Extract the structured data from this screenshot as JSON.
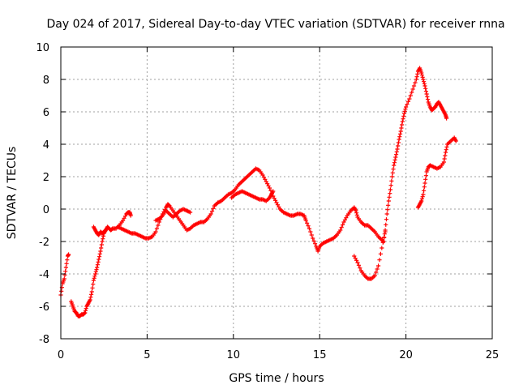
{
  "chart_data": {
    "type": "scatter",
    "title": "Day 024 of 2017, Sidereal Day-to-day VTEC variation (SDTVAR) for receiver rnna",
    "xlabel": "GPS time / hours",
    "ylabel": "SDTVAR / TECUs",
    "xlim": [
      0,
      25
    ],
    "ylim": [
      -8,
      10
    ],
    "xticks": [
      "0",
      "5",
      "10",
      "15",
      "20",
      "25"
    ],
    "yticks": [
      "-8",
      "-6",
      "-4",
      "-2",
      "0",
      "2",
      "4",
      "6",
      "8",
      "10"
    ],
    "grid": true,
    "marker": "plus",
    "color": "#ff0000",
    "series": [
      {
        "points": [
          [
            0.0,
            -5.3
          ],
          [
            0.1,
            -4.6
          ],
          [
            0.2,
            -4.3
          ],
          [
            0.3,
            -3.6
          ],
          [
            0.4,
            -2.9
          ],
          [
            0.45,
            -2.8
          ]
        ]
      },
      {
        "points": [
          [
            0.6,
            -5.7
          ],
          [
            0.7,
            -6.0
          ],
          [
            0.8,
            -6.3
          ],
          [
            0.9,
            -6.4
          ],
          [
            1.0,
            -6.6
          ],
          [
            1.1,
            -6.6
          ],
          [
            1.2,
            -6.5
          ],
          [
            1.3,
            -6.5
          ],
          [
            1.4,
            -6.4
          ],
          [
            1.5,
            -6.0
          ],
          [
            1.6,
            -5.8
          ],
          [
            1.7,
            -5.6
          ],
          [
            1.8,
            -5.1
          ],
          [
            1.9,
            -4.4
          ],
          [
            2.0,
            -4.0
          ],
          [
            2.1,
            -3.6
          ],
          [
            2.2,
            -3.1
          ],
          [
            2.3,
            -2.6
          ],
          [
            2.4,
            -2.0
          ],
          [
            2.5,
            -1.5
          ],
          [
            2.6,
            -1.3
          ],
          [
            2.7,
            -1.1
          ],
          [
            2.8,
            -1.2
          ],
          [
            2.9,
            -1.3
          ],
          [
            3.0,
            -1.2
          ],
          [
            3.2,
            -1.2
          ],
          [
            3.4,
            -1.0
          ],
          [
            3.6,
            -0.7
          ],
          [
            3.8,
            -0.3
          ],
          [
            3.9,
            -0.2
          ],
          [
            4.0,
            -0.2
          ],
          [
            4.05,
            -0.4
          ]
        ]
      },
      {
        "points": [
          [
            1.9,
            -1.1
          ],
          [
            2.0,
            -1.3
          ],
          [
            2.1,
            -1.5
          ],
          [
            2.2,
            -1.6
          ],
          [
            2.3,
            -1.4
          ],
          [
            2.4,
            -1.5
          ],
          [
            2.5,
            -1.4
          ],
          [
            2.6,
            -1.3
          ]
        ]
      },
      {
        "points": [
          [
            3.3,
            -1.1
          ],
          [
            3.5,
            -1.2
          ],
          [
            3.7,
            -1.3
          ],
          [
            3.9,
            -1.4
          ],
          [
            4.1,
            -1.5
          ],
          [
            4.3,
            -1.5
          ],
          [
            4.5,
            -1.6
          ],
          [
            4.7,
            -1.7
          ],
          [
            4.9,
            -1.8
          ],
          [
            5.1,
            -1.8
          ],
          [
            5.3,
            -1.7
          ],
          [
            5.5,
            -1.4
          ],
          [
            5.7,
            -0.8
          ],
          [
            5.9,
            -0.3
          ],
          [
            6.1,
            0.1
          ],
          [
            6.2,
            0.3
          ],
          [
            6.3,
            0.2
          ],
          [
            6.5,
            -0.1
          ],
          [
            6.7,
            -0.4
          ],
          [
            6.9,
            -0.7
          ],
          [
            7.1,
            -1.0
          ],
          [
            7.3,
            -1.3
          ],
          [
            7.5,
            -1.2
          ],
          [
            7.7,
            -1.0
          ],
          [
            7.9,
            -0.9
          ],
          [
            8.1,
            -0.8
          ],
          [
            8.3,
            -0.8
          ],
          [
            8.5,
            -0.6
          ],
          [
            8.7,
            -0.3
          ],
          [
            8.9,
            0.2
          ],
          [
            9.1,
            0.4
          ],
          [
            9.3,
            0.5
          ],
          [
            9.5,
            0.7
          ],
          [
            9.7,
            0.9
          ],
          [
            9.9,
            1.0
          ],
          [
            10.1,
            1.2
          ],
          [
            10.3,
            1.5
          ],
          [
            10.5,
            1.7
          ],
          [
            10.7,
            1.9
          ],
          [
            10.9,
            2.1
          ],
          [
            11.1,
            2.3
          ],
          [
            11.3,
            2.5
          ],
          [
            11.5,
            2.4
          ],
          [
            11.7,
            2.1
          ],
          [
            11.9,
            1.7
          ],
          [
            12.1,
            1.3
          ],
          [
            12.3,
            0.8
          ],
          [
            12.5,
            0.4
          ],
          [
            12.7,
            0.0
          ],
          [
            12.9,
            -0.2
          ],
          [
            13.1,
            -0.3
          ],
          [
            13.3,
            -0.4
          ],
          [
            13.5,
            -0.4
          ],
          [
            13.7,
            -0.3
          ],
          [
            13.9,
            -0.3
          ],
          [
            14.1,
            -0.4
          ],
          [
            14.2,
            -0.7
          ],
          [
            14.4,
            -1.2
          ],
          [
            14.6,
            -1.8
          ],
          [
            14.8,
            -2.3
          ],
          [
            14.9,
            -2.6
          ],
          [
            15.0,
            -2.3
          ],
          [
            15.2,
            -2.1
          ],
          [
            15.4,
            -2.0
          ],
          [
            15.6,
            -1.9
          ],
          [
            15.8,
            -1.8
          ],
          [
            16.0,
            -1.6
          ],
          [
            16.2,
            -1.3
          ],
          [
            16.4,
            -0.8
          ],
          [
            16.6,
            -0.4
          ],
          [
            16.8,
            -0.1
          ],
          [
            17.0,
            0.1
          ],
          [
            17.1,
            -0.1
          ],
          [
            17.2,
            -0.5
          ],
          [
            17.4,
            -0.8
          ],
          [
            17.6,
            -1.0
          ],
          [
            17.8,
            -1.0
          ],
          [
            18.0,
            -1.2
          ],
          [
            18.2,
            -1.4
          ],
          [
            18.4,
            -1.7
          ],
          [
            18.6,
            -1.9
          ],
          [
            18.7,
            -2.0
          ],
          [
            18.8,
            -1.3
          ],
          [
            18.9,
            -0.3
          ],
          [
            19.0,
            0.5
          ],
          [
            19.1,
            1.2
          ],
          [
            19.2,
            2.0
          ],
          [
            19.3,
            2.7
          ],
          [
            19.4,
            3.2
          ],
          [
            19.5,
            3.7
          ],
          [
            19.6,
            4.3
          ],
          [
            19.7,
            4.8
          ],
          [
            19.8,
            5.4
          ],
          [
            19.9,
            5.9
          ],
          [
            20.0,
            6.3
          ],
          [
            20.2,
            6.8
          ],
          [
            20.4,
            7.4
          ],
          [
            20.6,
            8.0
          ],
          [
            20.7,
            8.5
          ],
          [
            20.8,
            8.7
          ],
          [
            20.9,
            8.4
          ],
          [
            21.0,
            8.0
          ],
          [
            21.1,
            7.6
          ],
          [
            21.2,
            7.1
          ],
          [
            21.3,
            6.6
          ],
          [
            21.4,
            6.3
          ],
          [
            21.5,
            6.1
          ],
          [
            21.6,
            6.2
          ],
          [
            21.7,
            6.3
          ],
          [
            21.8,
            6.5
          ],
          [
            21.9,
            6.6
          ],
          [
            22.0,
            6.4
          ],
          [
            22.1,
            6.2
          ],
          [
            22.2,
            6.0
          ],
          [
            22.3,
            5.8
          ],
          [
            22.35,
            5.6
          ]
        ]
      },
      {
        "points": [
          [
            5.5,
            -0.7
          ],
          [
            5.7,
            -0.6
          ],
          [
            5.9,
            -0.4
          ],
          [
            6.1,
            -0.1
          ],
          [
            6.3,
            -0.3
          ],
          [
            6.5,
            -0.5
          ],
          [
            6.7,
            -0.3
          ],
          [
            6.9,
            -0.1
          ],
          [
            7.1,
            0.0
          ],
          [
            7.3,
            -0.1
          ],
          [
            7.5,
            -0.2
          ]
        ]
      },
      {
        "points": [
          [
            9.9,
            0.7
          ],
          [
            10.1,
            0.9
          ],
          [
            10.3,
            1.0
          ],
          [
            10.5,
            1.1
          ],
          [
            10.7,
            1.0
          ],
          [
            10.9,
            0.9
          ],
          [
            11.1,
            0.8
          ],
          [
            11.3,
            0.7
          ],
          [
            11.5,
            0.6
          ],
          [
            11.7,
            0.6
          ],
          [
            11.9,
            0.5
          ],
          [
            12.1,
            0.7
          ],
          [
            12.2,
            0.9
          ],
          [
            12.3,
            1.1
          ]
        ]
      },
      {
        "points": [
          [
            17.0,
            -2.9
          ],
          [
            17.2,
            -3.3
          ],
          [
            17.4,
            -3.8
          ],
          [
            17.6,
            -4.1
          ],
          [
            17.8,
            -4.3
          ],
          [
            18.0,
            -4.3
          ],
          [
            18.2,
            -4.1
          ],
          [
            18.4,
            -3.5
          ],
          [
            18.6,
            -2.4
          ],
          [
            18.8,
            -1.4
          ]
        ]
      },
      {
        "points": [
          [
            20.7,
            0.1
          ],
          [
            20.8,
            0.3
          ],
          [
            20.9,
            0.5
          ],
          [
            21.0,
            0.9
          ],
          [
            21.1,
            1.6
          ],
          [
            21.2,
            2.3
          ],
          [
            21.3,
            2.6
          ],
          [
            21.4,
            2.7
          ],
          [
            21.6,
            2.6
          ],
          [
            21.8,
            2.5
          ],
          [
            22.0,
            2.6
          ],
          [
            22.2,
            2.9
          ],
          [
            22.3,
            3.5
          ],
          [
            22.4,
            4.0
          ],
          [
            22.6,
            4.2
          ],
          [
            22.8,
            4.4
          ],
          [
            22.9,
            4.2
          ]
        ]
      }
    ]
  }
}
